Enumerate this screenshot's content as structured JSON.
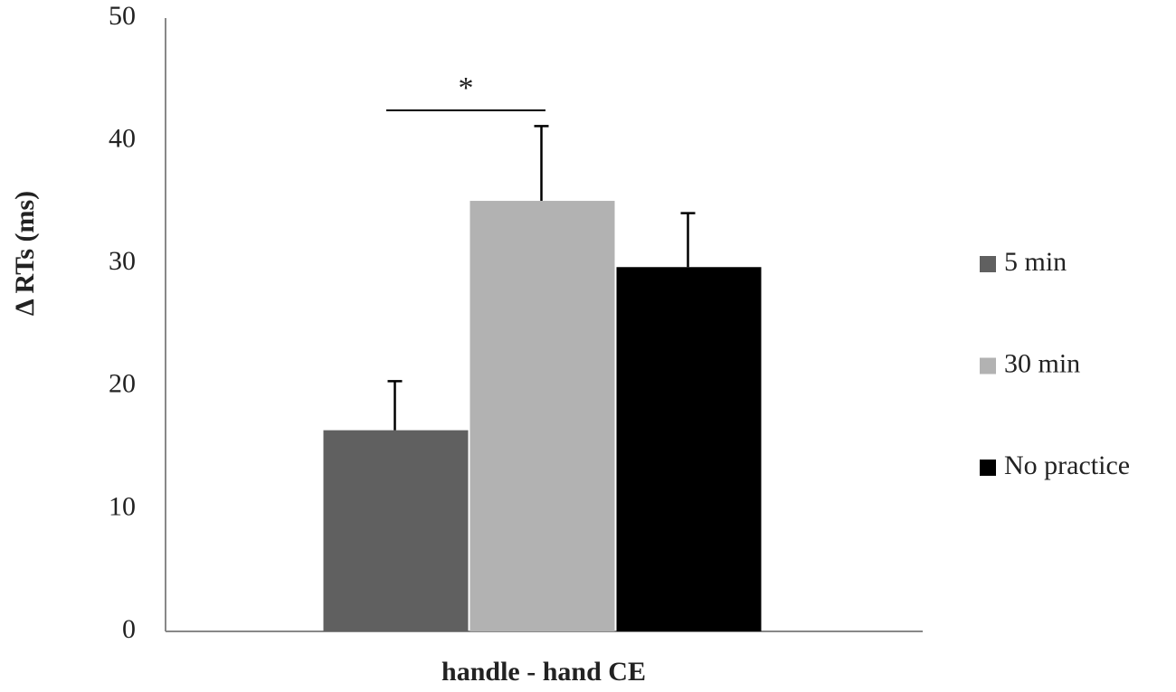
{
  "chart_data": {
    "type": "bar",
    "x_label": "handle - hand CE",
    "y_label": "Δ RTs (ms)",
    "categories": [
      "handle - hand CE"
    ],
    "series": [
      {
        "name": "5 min",
        "color": "#606060",
        "values": [
          16.4
        ],
        "errors": [
          4.0
        ]
      },
      {
        "name": "30 min",
        "color": "#b2b2b2",
        "values": [
          35.1
        ],
        "errors": [
          6.1
        ]
      },
      {
        "name": "No practice",
        "color": "#000000",
        "values": [
          29.7
        ],
        "errors": [
          4.4
        ]
      }
    ],
    "annotation": "*",
    "ylim": [
      0,
      50
    ],
    "yticks": [
      0,
      10,
      20,
      30,
      40,
      50
    ],
    "grid": false,
    "legend": "right"
  }
}
